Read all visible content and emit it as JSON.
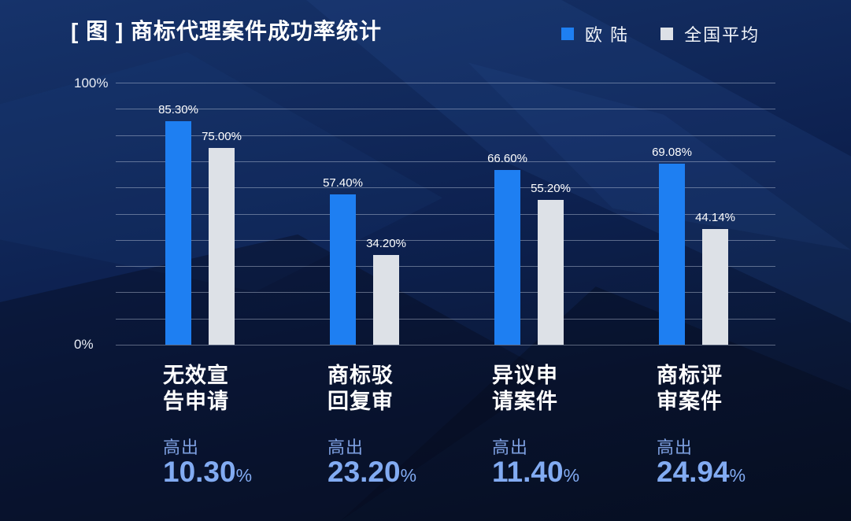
{
  "title": "[ 图 ] 商标代理案件成功率统计",
  "legend": [
    {
      "name": "eulu",
      "label": "欧 陆",
      "color": "#1e7ff2"
    },
    {
      "name": "national-average",
      "label": "全国平均",
      "color": "#dde1e7"
    }
  ],
  "y_axis": {
    "top_label": "100%",
    "bottom_label": "0%"
  },
  "chart_data": {
    "type": "bar",
    "title": "商标代理案件成功率统计",
    "categories": [
      "无效宣告申请",
      "商标驳回复审",
      "异议申请案件",
      "商标评审案件"
    ],
    "categories_display": [
      [
        "无效宣",
        "告申请"
      ],
      [
        "商标驳",
        "回复审"
      ],
      [
        "异议申",
        "请案件"
      ],
      [
        "商标评",
        "审案件"
      ]
    ],
    "series": [
      {
        "name": "欧陆",
        "color": "#1e7ff2",
        "values": [
          85.3,
          57.4,
          66.6,
          69.08
        ],
        "labels": [
          "85.30%",
          "57.40%",
          "66.60%",
          "69.08%"
        ]
      },
      {
        "name": "全国平均",
        "color": "#dde1e7",
        "values": [
          75.0,
          34.2,
          55.2,
          44.14
        ],
        "labels": [
          "75.00%",
          "34.20%",
          "55.20%",
          "44.14%"
        ]
      }
    ],
    "deltas": {
      "prefix": "高出",
      "values": [
        "10.30",
        "23.20",
        "11.40",
        "24.94"
      ],
      "unit": "%"
    },
    "ylabel": "",
    "xlabel": "",
    "ylim": [
      0,
      100
    ],
    "grid": true,
    "gridline_interval_percent": 10,
    "legend_position": "top-right"
  }
}
